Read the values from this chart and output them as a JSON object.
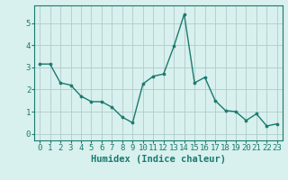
{
  "x": [
    0,
    1,
    2,
    3,
    4,
    5,
    6,
    7,
    8,
    9,
    10,
    11,
    12,
    13,
    14,
    15,
    16,
    17,
    18,
    19,
    20,
    21,
    22,
    23
  ],
  "y": [
    3.15,
    3.15,
    2.3,
    2.2,
    1.7,
    1.45,
    1.45,
    1.2,
    0.75,
    0.5,
    2.25,
    2.6,
    2.7,
    3.95,
    5.4,
    2.3,
    2.55,
    1.5,
    1.05,
    1.0,
    0.6,
    0.9,
    0.35,
    0.45
  ],
  "line_color": "#1a7a6e",
  "marker_color": "#1a7a6e",
  "bg_color": "#d8f0ee",
  "grid_color": "#b0cccb",
  "axis_color": "#1a7a6e",
  "xlabel": "Humidex (Indice chaleur)",
  "ylim": [
    -0.3,
    5.8
  ],
  "xlim": [
    -0.5,
    23.5
  ],
  "yticks": [
    0,
    1,
    2,
    3,
    4,
    5
  ],
  "xticks": [
    0,
    1,
    2,
    3,
    4,
    5,
    6,
    7,
    8,
    9,
    10,
    11,
    12,
    13,
    14,
    15,
    16,
    17,
    18,
    19,
    20,
    21,
    22,
    23
  ],
  "xlabel_fontsize": 7.5,
  "tick_fontsize": 6.5,
  "marker_size": 2.2,
  "line_width": 1.0
}
